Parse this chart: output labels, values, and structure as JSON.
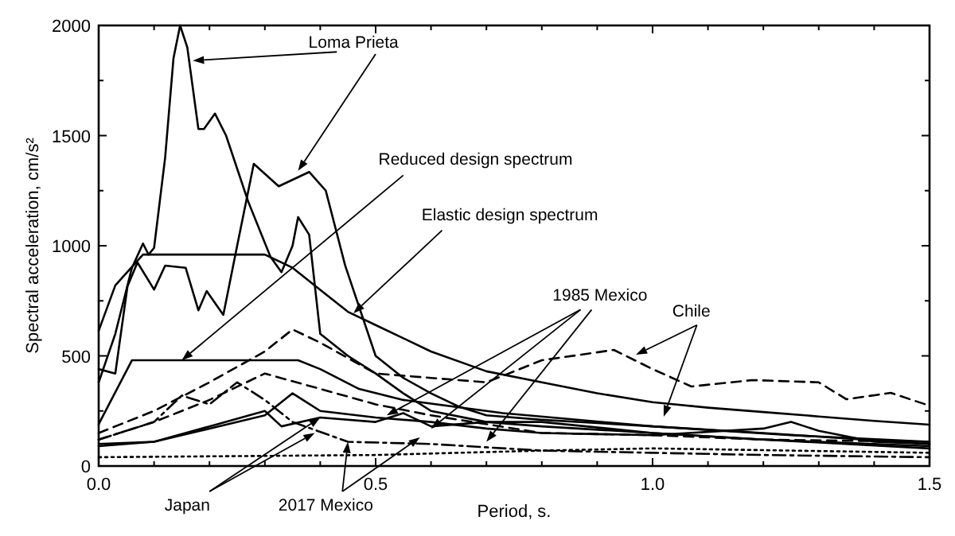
{
  "chart_data": {
    "type": "line",
    "xlabel": "Period, s.",
    "ylabel": "Spectral acceleration, cm/s²",
    "xlim": [
      0,
      1.5
    ],
    "ylim": [
      0,
      2000
    ],
    "xticks": [
      {
        "value": 0,
        "label": "0.0"
      },
      {
        "value": 0.1,
        "label": null
      },
      {
        "value": 0.2,
        "label": null
      },
      {
        "value": 0.3,
        "label": null
      },
      {
        "value": 0.4,
        "label": null
      },
      {
        "value": 0.5,
        "label": "0.5"
      },
      {
        "value": 0.6,
        "label": null
      },
      {
        "value": 0.7,
        "label": null
      },
      {
        "value": 0.8,
        "label": null
      },
      {
        "value": 0.9,
        "label": null
      },
      {
        "value": 1.0,
        "label": "1.0"
      },
      {
        "value": 1.1,
        "label": null
      },
      {
        "value": 1.2,
        "label": null
      },
      {
        "value": 1.3,
        "label": null
      },
      {
        "value": 1.4,
        "label": null
      },
      {
        "value": 1.5,
        "label": "1.5"
      }
    ],
    "yticks": [
      0,
      {
        "value": 250,
        "label": null
      },
      500,
      {
        "value": 750,
        "label": null
      },
      1000,
      {
        "value": 1250,
        "label": null
      },
      1500,
      {
        "value": 1750,
        "label": null
      },
      2000
    ],
    "grid": false,
    "marker": "none",
    "series": [
      {
        "color": "#000000",
        "line_style": "solid",
        "x": [
          0,
          0.03,
          0.06,
          0.08,
          0.09,
          0.1,
          0.12,
          0.135,
          0.147,
          0.16,
          0.18,
          0.19,
          0.21,
          0.23,
          0.27,
          0.31,
          0.33,
          0.35,
          0.36,
          0.38,
          0.4,
          0.45,
          0.5,
          0.55,
          0.6,
          0.7,
          0.8,
          1.0,
          1.2,
          1.5
        ],
        "values": [
          380,
          600,
          900,
          1010,
          960,
          990,
          1400,
          1850,
          2000,
          1900,
          1530,
          1530,
          1600,
          1500,
          1200,
          950,
          880,
          1000,
          1130,
          1050,
          600,
          500,
          420,
          330,
          250,
          200,
          180,
          150,
          120,
          80
        ]
      },
      {
        "color": "#000000",
        "line_style": "solid",
        "x": [
          0,
          0.03,
          0.052,
          0.07,
          0.1,
          0.12,
          0.157,
          0.18,
          0.195,
          0.225,
          0.25,
          0.28,
          0.325,
          0.38,
          0.41,
          0.445,
          0.5,
          0.55,
          0.6,
          0.65,
          0.7,
          0.8,
          1.0,
          1.2,
          1.5
        ],
        "values": [
          440,
          420,
          816,
          924,
          801,
          910,
          900,
          707,
          794,
          686,
          1000,
          1372,
          1270,
          1335,
          1250,
          910,
          500,
          400,
          330,
          270,
          230,
          210,
          180,
          150,
          100
        ]
      },
      {
        "color": "#000000",
        "line_style": "solid",
        "x": [
          0,
          0.03,
          0.08,
          0.3,
          0.35,
          0.4,
          0.45,
          0.5,
          0.6,
          0.7,
          0.8,
          0.9,
          1.0,
          1.1,
          1.2,
          1.3,
          1.4,
          1.5
        ],
        "values": [
          614,
          820,
          960,
          960,
          900,
          800,
          700,
          640,
          520,
          430,
          380,
          330,
          290,
          265,
          245,
          225,
          205,
          188
        ]
      },
      {
        "color": "#000000",
        "line_style": "solid",
        "x": [
          0,
          0.06,
          0.36,
          0.4,
          0.47,
          0.55,
          0.73,
          1.0,
          1.25,
          1.5
        ],
        "values": [
          190,
          480,
          480,
          440,
          350,
          300,
          240,
          180,
          140,
          110
        ]
      },
      {
        "color": "#000000",
        "line_style": "dashed",
        "x": [
          0,
          0.1,
          0.2,
          0.3,
          0.35,
          0.4,
          0.5,
          0.6,
          0.7,
          0.8,
          0.93,
          1.0,
          1.07,
          1.18,
          1.3,
          1.35,
          1.43,
          1.5
        ],
        "values": [
          150,
          250,
          380,
          520,
          620,
          560,
          420,
          400,
          380,
          480,
          527,
          440,
          361,
          390,
          380,
          303,
          332,
          274
        ]
      },
      {
        "color": "#000000",
        "line_style": "dashed",
        "x": [
          0,
          0.1,
          0.2,
          0.3,
          0.4,
          0.5,
          0.6,
          0.8,
          1.0,
          1.2,
          1.5
        ],
        "values": [
          120,
          200,
          300,
          420,
          350,
          280,
          230,
          150,
          140,
          120,
          110
        ]
      },
      {
        "color": "#000000",
        "line_style": "solid",
        "x": [
          0,
          0.1,
          0.2,
          0.3,
          0.35,
          0.4,
          0.5,
          0.6,
          0.7,
          0.8,
          1.0,
          1.2,
          1.25,
          1.3,
          1.4,
          1.5
        ],
        "values": [
          100,
          110,
          170,
          230,
          330,
          250,
          220,
          200,
          170,
          150,
          140,
          170,
          200,
          160,
          110,
          100
        ]
      },
      {
        "color": "#000000",
        "line_style": "solid",
        "x": [
          0,
          0.1,
          0.2,
          0.3,
          0.33,
          0.4,
          0.5,
          0.55,
          0.6,
          0.7,
          0.8,
          1.0,
          1.2,
          1.5
        ],
        "values": [
          90,
          110,
          180,
          250,
          180,
          220,
          200,
          240,
          180,
          200,
          200,
          150,
          120,
          90
        ]
      },
      {
        "color": "#000000",
        "line_style": "dashdot",
        "x": [
          0,
          0.1,
          0.15,
          0.2,
          0.25,
          0.3,
          0.35,
          0.45,
          0.6,
          0.8,
          1.0,
          1.2,
          1.5
        ],
        "values": [
          120,
          200,
          320,
          280,
          380,
          300,
          200,
          110,
          100,
          70,
          60,
          50,
          40
        ]
      },
      {
        "color": "#000000",
        "line_style": "dotted",
        "x": [
          0,
          0.5,
          0.8,
          1.0,
          1.5
        ],
        "values": [
          40,
          50,
          70,
          80,
          60
        ]
      }
    ],
    "annotations": [
      {
        "text": "Loma Prieta",
        "x": 0.17,
        "y": 1840
      },
      {
        "text": "Reduced design spectrum",
        "x": 0.15,
        "y": 480
      },
      {
        "text": "Elastic design spectrum",
        "x": 0.46,
        "y": 693
      },
      {
        "text": "1985 Mexico",
        "x": 0.52,
        "y": 230
      },
      {
        "text": "Chile",
        "x": 0.97,
        "y": 505
      },
      {
        "text": "Japan",
        "x": 0.4,
        "y": 220
      },
      {
        "text": "2017 Mexico",
        "x": 0.45,
        "y": 110
      }
    ]
  }
}
